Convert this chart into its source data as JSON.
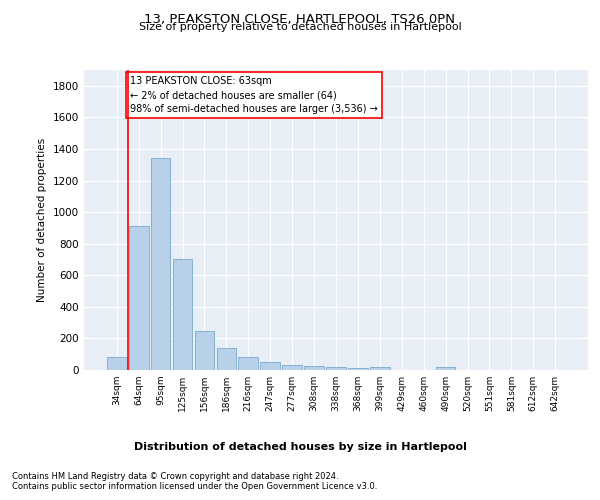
{
  "title": "13, PEAKSTON CLOSE, HARTLEPOOL, TS26 0PN",
  "subtitle": "Size of property relative to detached houses in Hartlepool",
  "xlabel": "Distribution of detached houses by size in Hartlepool",
  "ylabel": "Number of detached properties",
  "bar_color": "#b8d0e8",
  "bar_edge_color": "#6a9fc8",
  "bg_color": "#e8eef5",
  "grid_color": "#ffffff",
  "categories": [
    "34sqm",
    "64sqm",
    "95sqm",
    "125sqm",
    "156sqm",
    "186sqm",
    "216sqm",
    "247sqm",
    "277sqm",
    "308sqm",
    "338sqm",
    "368sqm",
    "399sqm",
    "429sqm",
    "460sqm",
    "490sqm",
    "520sqm",
    "551sqm",
    "581sqm",
    "612sqm",
    "642sqm"
  ],
  "values": [
    80,
    910,
    1340,
    705,
    248,
    138,
    80,
    50,
    30,
    25,
    20,
    15,
    20,
    0,
    0,
    20,
    0,
    0,
    0,
    0,
    0
  ],
  "ylim": [
    0,
    1900
  ],
  "yticks": [
    0,
    200,
    400,
    600,
    800,
    1000,
    1200,
    1400,
    1600,
    1800
  ],
  "annotation_title": "13 PEAKSTON CLOSE: 63sqm",
  "annotation_line1": "← 2% of detached houses are smaller (64)",
  "annotation_line2": "98% of semi-detached houses are larger (3,536) →",
  "footer_line1": "Contains HM Land Registry data © Crown copyright and database right 2024.",
  "footer_line2": "Contains public sector information licensed under the Open Government Licence v3.0."
}
